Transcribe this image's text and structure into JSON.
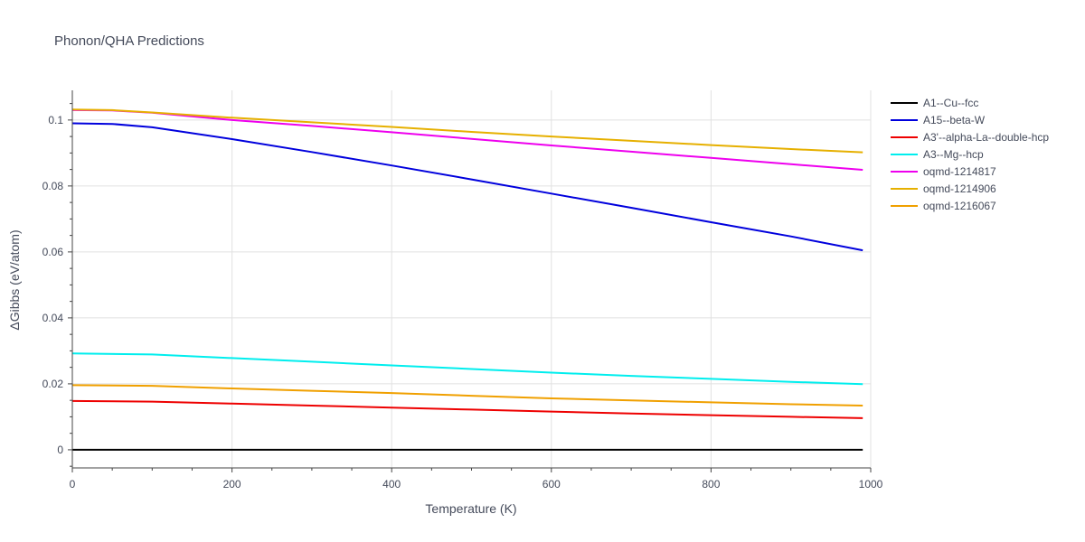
{
  "chart_data": {
    "type": "line",
    "title": "Phonon/QHA Predictions",
    "xlabel": "Temperature (K)",
    "ylabel": "ΔGibbs (eV/atom)",
    "xlim": [
      0,
      1000
    ],
    "ylim": [
      -0.0055,
      0.109
    ],
    "x_ticks": [
      0,
      200,
      400,
      600,
      800,
      1000
    ],
    "x_tick_labels": [
      "0",
      "200",
      "400",
      "600",
      "800",
      "1000"
    ],
    "y_ticks": [
      0,
      0.02,
      0.04,
      0.06,
      0.08,
      0.1
    ],
    "y_tick_labels": [
      "0",
      "0.02",
      "0.04",
      "0.06",
      "0.08",
      "0.1"
    ],
    "grid": true,
    "legend_position": "right",
    "series": [
      {
        "name": "A1--Cu--fcc",
        "color": "#000000",
        "x": [
          0,
          990
        ],
        "y": [
          0,
          0
        ]
      },
      {
        "name": "A15--beta-W",
        "color": "#0000dd",
        "x": [
          0,
          50,
          100,
          200,
          300,
          400,
          500,
          600,
          700,
          800,
          900,
          990
        ],
        "y": [
          0.099,
          0.0988,
          0.0978,
          0.0942,
          0.0903,
          0.0862,
          0.082,
          0.0777,
          0.0734,
          0.069,
          0.0647,
          0.0605
        ]
      },
      {
        "name": "A3'--alpha-La--double-hcp",
        "color": "#ee0000",
        "x": [
          0,
          100,
          200,
          300,
          400,
          500,
          600,
          700,
          800,
          900,
          990
        ],
        "y": [
          0.0148,
          0.0146,
          0.014,
          0.0134,
          0.0128,
          0.0122,
          0.0116,
          0.011,
          0.0105,
          0.01,
          0.0096
        ]
      },
      {
        "name": "A3--Mg--hcp",
        "color": "#00eeee",
        "x": [
          0,
          100,
          200,
          300,
          400,
          500,
          600,
          700,
          800,
          900,
          990
        ],
        "y": [
          0.0292,
          0.0289,
          0.0278,
          0.0267,
          0.0256,
          0.0245,
          0.0234,
          0.0224,
          0.0215,
          0.0206,
          0.0199
        ]
      },
      {
        "name": "oqmd-1214817",
        "color": "#ee00ee",
        "x": [
          0,
          50,
          100,
          200,
          300,
          400,
          500,
          600,
          700,
          800,
          900,
          990
        ],
        "y": [
          0.103,
          0.1029,
          0.1022,
          0.1,
          0.0982,
          0.0963,
          0.0943,
          0.0923,
          0.0904,
          0.0885,
          0.0866,
          0.0849
        ]
      },
      {
        "name": "oqmd-1214906",
        "color": "#e6b000",
        "x": [
          0,
          50,
          100,
          200,
          300,
          400,
          500,
          600,
          700,
          800,
          900,
          990
        ],
        "y": [
          0.1032,
          0.103,
          0.1023,
          0.1007,
          0.0993,
          0.0979,
          0.0964,
          0.095,
          0.0937,
          0.0924,
          0.0912,
          0.0902
        ]
      },
      {
        "name": "oqmd-1216067",
        "color": "#f0a000",
        "x": [
          0,
          100,
          200,
          300,
          400,
          500,
          600,
          700,
          800,
          900,
          990
        ],
        "y": [
          0.0196,
          0.0194,
          0.0186,
          0.0179,
          0.0172,
          0.0164,
          0.0156,
          0.015,
          0.0144,
          0.0138,
          0.0134
        ]
      }
    ]
  }
}
